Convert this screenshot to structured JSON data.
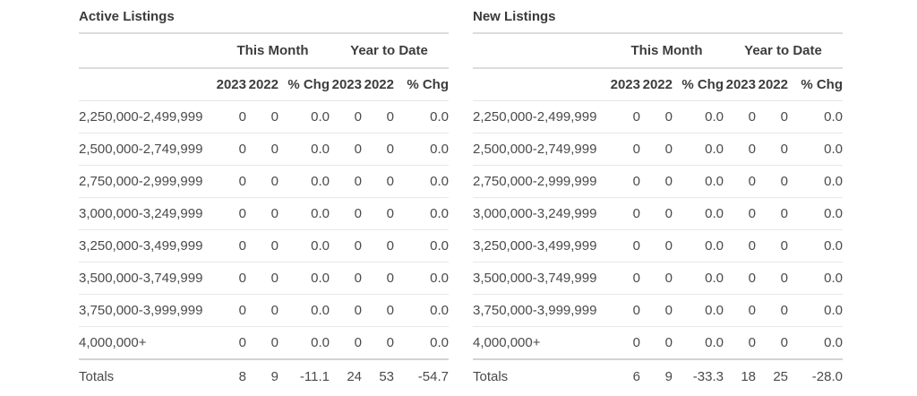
{
  "colors": {
    "background": "#ffffff",
    "title_text": "#3a3a3a",
    "header_text": "#3d3d3d",
    "body_text": "#4a4a4a",
    "rule_light": "#e7e7e7",
    "rule_heavy": "#dcdcdc"
  },
  "chart_data": [
    {
      "type": "table",
      "title": "Active Listings",
      "group_headers": [
        "This Month",
        "Year to Date"
      ],
      "columns": [
        "2023",
        "2022",
        "% Chg",
        "2023",
        "2022",
        "% Chg"
      ],
      "rows": [
        {
          "label": "2,250,000-2,499,999",
          "values": [
            "0",
            "0",
            "0.0",
            "0",
            "0",
            "0.0"
          ]
        },
        {
          "label": "2,500,000-2,749,999",
          "values": [
            "0",
            "0",
            "0.0",
            "0",
            "0",
            "0.0"
          ]
        },
        {
          "label": "2,750,000-2,999,999",
          "values": [
            "0",
            "0",
            "0.0",
            "0",
            "0",
            "0.0"
          ]
        },
        {
          "label": "3,000,000-3,249,999",
          "values": [
            "0",
            "0",
            "0.0",
            "0",
            "0",
            "0.0"
          ]
        },
        {
          "label": "3,250,000-3,499,999",
          "values": [
            "0",
            "0",
            "0.0",
            "0",
            "0",
            "0.0"
          ]
        },
        {
          "label": "3,500,000-3,749,999",
          "values": [
            "0",
            "0",
            "0.0",
            "0",
            "0",
            "0.0"
          ]
        },
        {
          "label": "3,750,000-3,999,999",
          "values": [
            "0",
            "0",
            "0.0",
            "0",
            "0",
            "0.0"
          ]
        },
        {
          "label": "4,000,000+",
          "values": [
            "0",
            "0",
            "0.0",
            "0",
            "0",
            "0.0"
          ]
        }
      ],
      "totals": {
        "label": "Totals",
        "values": [
          "8",
          "9",
          "-11.1",
          "24",
          "53",
          "-54.7"
        ]
      }
    },
    {
      "type": "table",
      "title": "New Listings",
      "group_headers": [
        "This Month",
        "Year to Date"
      ],
      "columns": [
        "2023",
        "2022",
        "% Chg",
        "2023",
        "2022",
        "% Chg"
      ],
      "rows": [
        {
          "label": "2,250,000-2,499,999",
          "values": [
            "0",
            "0",
            "0.0",
            "0",
            "0",
            "0.0"
          ]
        },
        {
          "label": "2,500,000-2,749,999",
          "values": [
            "0",
            "0",
            "0.0",
            "0",
            "0",
            "0.0"
          ]
        },
        {
          "label": "2,750,000-2,999,999",
          "values": [
            "0",
            "0",
            "0.0",
            "0",
            "0",
            "0.0"
          ]
        },
        {
          "label": "3,000,000-3,249,999",
          "values": [
            "0",
            "0",
            "0.0",
            "0",
            "0",
            "0.0"
          ]
        },
        {
          "label": "3,250,000-3,499,999",
          "values": [
            "0",
            "0",
            "0.0",
            "0",
            "0",
            "0.0"
          ]
        },
        {
          "label": "3,500,000-3,749,999",
          "values": [
            "0",
            "0",
            "0.0",
            "0",
            "0",
            "0.0"
          ]
        },
        {
          "label": "3,750,000-3,999,999",
          "values": [
            "0",
            "0",
            "0.0",
            "0",
            "0",
            "0.0"
          ]
        },
        {
          "label": "4,000,000+",
          "values": [
            "0",
            "0",
            "0.0",
            "0",
            "0",
            "0.0"
          ]
        }
      ],
      "totals": {
        "label": "Totals",
        "values": [
          "6",
          "9",
          "-33.3",
          "18",
          "25",
          "-28.0"
        ]
      }
    }
  ]
}
